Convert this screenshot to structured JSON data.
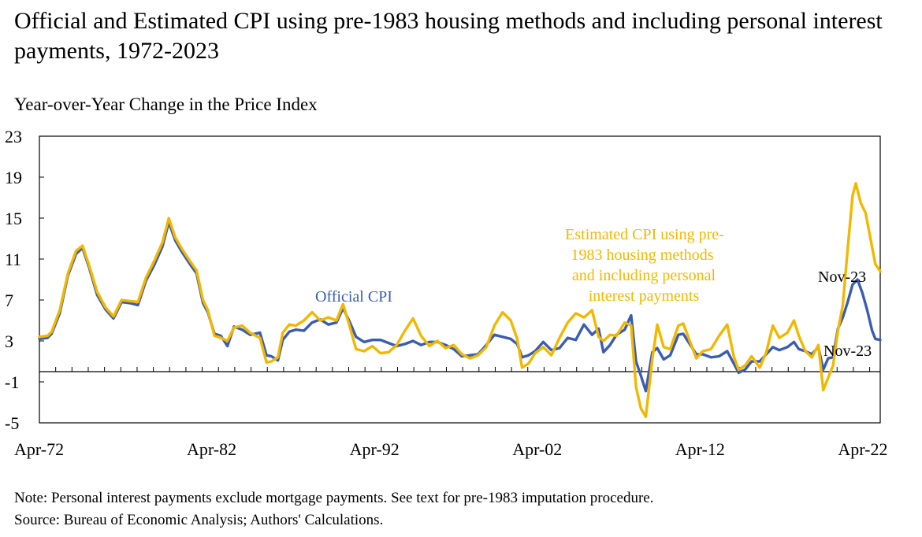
{
  "title": "Official and Estimated CPI using pre-1983 housing methods and including personal interest payments, 1972-2023",
  "subtitle": "Year-over-Year Change in the Price Index",
  "note": "Note: Personal interest payments exclude mortgage payments. See text for pre-1983 imputation procedure.",
  "source": "Source: Bureau of Economic Analysis; Authors' Calculations.",
  "colors": {
    "official": "#3a5db3",
    "estimated": "#f2b800"
  },
  "chart_data": {
    "type": "line",
    "title": "",
    "xlabel": "",
    "ylabel": "",
    "ylim": [
      -5,
      23
    ],
    "yticks": [
      23,
      19,
      15,
      11,
      7,
      3,
      -1,
      -5
    ],
    "xlim": [
      1972.25,
      2023.9
    ],
    "xticks": [
      {
        "x": 1972.25,
        "label": "Apr-72"
      },
      {
        "x": 1982.25,
        "label": "Apr-82"
      },
      {
        "x": 1992.25,
        "label": "Apr-92"
      },
      {
        "x": 2002.25,
        "label": "Apr-02"
      },
      {
        "x": 2012.25,
        "label": "Apr-12"
      },
      {
        "x": 2022.25,
        "label": "Apr-22"
      }
    ],
    "grid": false,
    "series": [
      {
        "name": "Official CPI",
        "values": [
          [
            1972.25,
            3.2
          ],
          [
            1972.75,
            3.3
          ],
          [
            1973.0,
            3.7
          ],
          [
            1973.5,
            5.7
          ],
          [
            1974.0,
            9.4
          ],
          [
            1974.5,
            11.5
          ],
          [
            1974.9,
            12.1
          ],
          [
            1975.3,
            10.2
          ],
          [
            1975.8,
            7.5
          ],
          [
            1976.3,
            6.1
          ],
          [
            1976.8,
            5.2
          ],
          [
            1977.3,
            6.8
          ],
          [
            1977.8,
            6.7
          ],
          [
            1978.3,
            6.5
          ],
          [
            1978.8,
            8.9
          ],
          [
            1979.3,
            10.4
          ],
          [
            1979.8,
            12.2
          ],
          [
            1980.2,
            14.6
          ],
          [
            1980.6,
            12.8
          ],
          [
            1981.0,
            11.7
          ],
          [
            1981.5,
            10.5
          ],
          [
            1981.9,
            9.6
          ],
          [
            1982.3,
            6.7
          ],
          [
            1982.6,
            5.8
          ],
          [
            1983.0,
            3.7
          ],
          [
            1983.4,
            3.5
          ],
          [
            1983.8,
            2.5
          ],
          [
            1984.2,
            4.4
          ],
          [
            1984.7,
            4.1
          ],
          [
            1985.2,
            3.6
          ],
          [
            1985.8,
            3.8
          ],
          [
            1986.2,
            1.6
          ],
          [
            1986.5,
            1.5
          ],
          [
            1986.9,
            1.1
          ],
          [
            1987.2,
            3.1
          ],
          [
            1987.6,
            3.9
          ],
          [
            1988.0,
            4.1
          ],
          [
            1988.5,
            4.0
          ],
          [
            1989.0,
            4.8
          ],
          [
            1989.5,
            5.1
          ],
          [
            1990.0,
            4.6
          ],
          [
            1990.5,
            4.8
          ],
          [
            1990.9,
            6.2
          ],
          [
            1991.3,
            4.9
          ],
          [
            1991.7,
            3.4
          ],
          [
            1992.2,
            2.9
          ],
          [
            1992.7,
            3.1
          ],
          [
            1993.2,
            3.1
          ],
          [
            1993.7,
            2.8
          ],
          [
            1994.2,
            2.5
          ],
          [
            1994.7,
            2.7
          ],
          [
            1995.2,
            3.0
          ],
          [
            1995.7,
            2.6
          ],
          [
            1996.2,
            2.9
          ],
          [
            1996.7,
            2.9
          ],
          [
            1997.2,
            2.6
          ],
          [
            1997.7,
            2.2
          ],
          [
            1998.2,
            1.5
          ],
          [
            1998.7,
            1.6
          ],
          [
            1999.2,
            1.7
          ],
          [
            1999.7,
            2.6
          ],
          [
            2000.2,
            3.6
          ],
          [
            2000.7,
            3.4
          ],
          [
            2001.2,
            3.2
          ],
          [
            2001.6,
            2.7
          ],
          [
            2001.9,
            1.4
          ],
          [
            2002.3,
            1.6
          ],
          [
            2002.7,
            2.0
          ],
          [
            2003.2,
            2.9
          ],
          [
            2003.7,
            2.1
          ],
          [
            2004.2,
            2.3
          ],
          [
            2004.7,
            3.3
          ],
          [
            2005.2,
            3.1
          ],
          [
            2005.7,
            4.6
          ],
          [
            2006.2,
            3.6
          ],
          [
            2006.6,
            4.2
          ],
          [
            2006.9,
            1.9
          ],
          [
            2007.3,
            2.6
          ],
          [
            2007.7,
            3.6
          ],
          [
            2008.2,
            4.1
          ],
          [
            2008.6,
            5.5
          ],
          [
            2008.9,
            1.0
          ],
          [
            2009.2,
            -0.4
          ],
          [
            2009.5,
            -1.9
          ],
          [
            2009.9,
            1.9
          ],
          [
            2010.2,
            2.3
          ],
          [
            2010.6,
            1.2
          ],
          [
            2011.0,
            1.6
          ],
          [
            2011.5,
            3.6
          ],
          [
            2011.8,
            3.7
          ],
          [
            2012.2,
            2.7
          ],
          [
            2012.6,
            1.7
          ],
          [
            2013.0,
            1.7
          ],
          [
            2013.5,
            1.4
          ],
          [
            2014.0,
            1.5
          ],
          [
            2014.5,
            2.0
          ],
          [
            2014.9,
            0.8
          ],
          [
            2015.2,
            -0.1
          ],
          [
            2015.6,
            0.2
          ],
          [
            2016.0,
            1.0
          ],
          [
            2016.5,
            1.0
          ],
          [
            2016.9,
            1.7
          ],
          [
            2017.3,
            2.4
          ],
          [
            2017.7,
            2.1
          ],
          [
            2018.2,
            2.4
          ],
          [
            2018.6,
            2.9
          ],
          [
            2018.9,
            2.2
          ],
          [
            2019.3,
            2.0
          ],
          [
            2019.7,
            1.7
          ],
          [
            2020.1,
            2.4
          ],
          [
            2020.4,
            0.2
          ],
          [
            2020.7,
            1.3
          ],
          [
            2021.0,
            1.4
          ],
          [
            2021.3,
            4.2
          ],
          [
            2021.6,
            5.3
          ],
          [
            2021.9,
            6.8
          ],
          [
            2022.2,
            8.5
          ],
          [
            2022.5,
            9.0
          ],
          [
            2022.8,
            7.7
          ],
          [
            2023.1,
            6.0
          ],
          [
            2023.4,
            4.0
          ],
          [
            2023.6,
            3.2
          ],
          [
            2023.9,
            3.1
          ]
        ]
      },
      {
        "name": "Estimated CPI using pre-1983 housing methods and including personal interest payments",
        "values": [
          [
            1972.25,
            3.4
          ],
          [
            1972.75,
            3.5
          ],
          [
            1973.0,
            3.9
          ],
          [
            1973.5,
            6.0
          ],
          [
            1974.0,
            9.6
          ],
          [
            1974.5,
            11.8
          ],
          [
            1974.9,
            12.3
          ],
          [
            1975.3,
            10.4
          ],
          [
            1975.8,
            7.8
          ],
          [
            1976.3,
            6.3
          ],
          [
            1976.8,
            5.4
          ],
          [
            1977.3,
            7.0
          ],
          [
            1977.8,
            6.9
          ],
          [
            1978.3,
            6.8
          ],
          [
            1978.8,
            9.2
          ],
          [
            1979.3,
            10.8
          ],
          [
            1979.8,
            12.6
          ],
          [
            1980.2,
            15.0
          ],
          [
            1980.6,
            13.1
          ],
          [
            1981.0,
            12.0
          ],
          [
            1981.5,
            10.8
          ],
          [
            1981.9,
            9.9
          ],
          [
            1982.3,
            7.0
          ],
          [
            1982.6,
            6.0
          ],
          [
            1983.0,
            3.5
          ],
          [
            1983.4,
            3.3
          ],
          [
            1983.8,
            3.0
          ],
          [
            1984.2,
            4.3
          ],
          [
            1984.7,
            4.5
          ],
          [
            1985.2,
            3.8
          ],
          [
            1985.8,
            3.3
          ],
          [
            1986.2,
            0.9
          ],
          [
            1986.5,
            1.0
          ],
          [
            1986.9,
            1.4
          ],
          [
            1987.2,
            3.8
          ],
          [
            1987.6,
            4.6
          ],
          [
            1988.0,
            4.5
          ],
          [
            1988.5,
            5.0
          ],
          [
            1989.0,
            5.8
          ],
          [
            1989.5,
            5.0
          ],
          [
            1990.0,
            5.3
          ],
          [
            1990.5,
            5.0
          ],
          [
            1990.9,
            6.6
          ],
          [
            1991.3,
            4.5
          ],
          [
            1991.7,
            2.2
          ],
          [
            1992.2,
            2.0
          ],
          [
            1992.7,
            2.5
          ],
          [
            1993.2,
            1.8
          ],
          [
            1993.7,
            1.9
          ],
          [
            1994.2,
            2.6
          ],
          [
            1994.7,
            4.0
          ],
          [
            1995.2,
            5.2
          ],
          [
            1995.7,
            3.5
          ],
          [
            1996.2,
            2.5
          ],
          [
            1996.7,
            3.0
          ],
          [
            1997.2,
            2.3
          ],
          [
            1997.7,
            2.6
          ],
          [
            1998.2,
            1.7
          ],
          [
            1998.7,
            1.3
          ],
          [
            1999.2,
            1.6
          ],
          [
            1999.7,
            2.4
          ],
          [
            2000.2,
            4.5
          ],
          [
            2000.7,
            5.8
          ],
          [
            2001.2,
            5.0
          ],
          [
            2001.6,
            3.2
          ],
          [
            2001.9,
            0.4
          ],
          [
            2002.3,
            0.8
          ],
          [
            2002.7,
            1.8
          ],
          [
            2003.2,
            2.4
          ],
          [
            2003.7,
            1.6
          ],
          [
            2004.2,
            3.3
          ],
          [
            2004.7,
            4.8
          ],
          [
            2005.2,
            5.7
          ],
          [
            2005.7,
            5.3
          ],
          [
            2006.2,
            6.0
          ],
          [
            2006.6,
            3.4
          ],
          [
            2006.9,
            3.0
          ],
          [
            2007.3,
            3.6
          ],
          [
            2007.7,
            3.5
          ],
          [
            2008.2,
            4.8
          ],
          [
            2008.6,
            4.5
          ],
          [
            2008.9,
            -1.5
          ],
          [
            2009.2,
            -3.6
          ],
          [
            2009.5,
            -4.4
          ],
          [
            2009.9,
            1.2
          ],
          [
            2010.2,
            4.6
          ],
          [
            2010.6,
            2.4
          ],
          [
            2011.0,
            2.2
          ],
          [
            2011.5,
            4.5
          ],
          [
            2011.8,
            4.7
          ],
          [
            2012.2,
            3.0
          ],
          [
            2012.6,
            1.3
          ],
          [
            2013.0,
            2.0
          ],
          [
            2013.5,
            2.2
          ],
          [
            2014.0,
            3.5
          ],
          [
            2014.5,
            4.6
          ],
          [
            2014.9,
            1.5
          ],
          [
            2015.2,
            0.2
          ],
          [
            2015.6,
            0.6
          ],
          [
            2016.0,
            1.5
          ],
          [
            2016.5,
            0.4
          ],
          [
            2016.9,
            1.9
          ],
          [
            2017.3,
            4.5
          ],
          [
            2017.7,
            3.3
          ],
          [
            2018.2,
            3.8
          ],
          [
            2018.6,
            5.0
          ],
          [
            2018.9,
            3.5
          ],
          [
            2019.3,
            2.0
          ],
          [
            2019.7,
            1.4
          ],
          [
            2020.1,
            2.6
          ],
          [
            2020.4,
            -1.8
          ],
          [
            2020.7,
            -0.6
          ],
          [
            2021.0,
            0.6
          ],
          [
            2021.3,
            4.0
          ],
          [
            2021.6,
            6.5
          ],
          [
            2021.9,
            12.0
          ],
          [
            2022.2,
            17.2
          ],
          [
            2022.4,
            18.4
          ],
          [
            2022.7,
            16.5
          ],
          [
            2023.0,
            15.5
          ],
          [
            2023.3,
            13.0
          ],
          [
            2023.6,
            10.5
          ],
          [
            2023.9,
            9.8
          ]
        ]
      }
    ],
    "annotations": [
      {
        "text": "Official CPI",
        "color": "official"
      },
      {
        "lines": [
          "Estimated CPI using pre-",
          "1983 housing methods",
          "and including  personal",
          "interest payments"
        ],
        "color": "estimated"
      },
      {
        "text": "Nov-23",
        "color": "black"
      },
      {
        "text": "Nov-23",
        "color": "black"
      }
    ]
  }
}
